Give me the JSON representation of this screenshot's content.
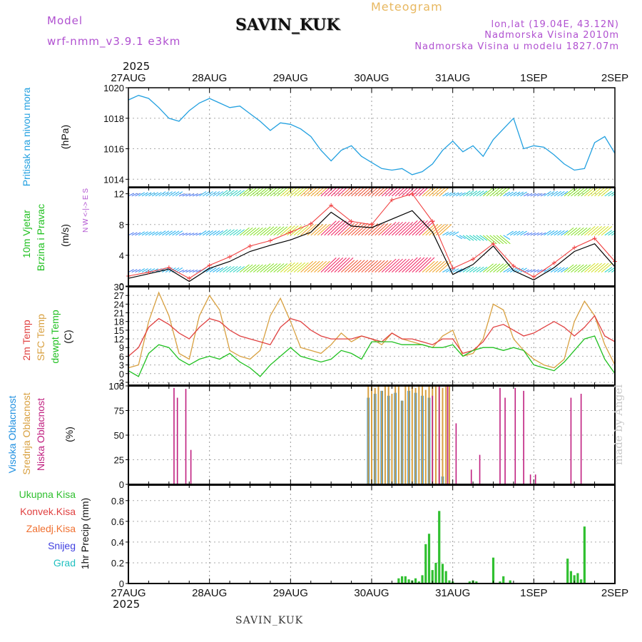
{
  "header": {
    "model_label": "Model",
    "model_name": "wrf-nmm_v3.9.1  e3km",
    "station": "SAVIN_KUK",
    "title": "Meteogram",
    "lonlat": "lon,lat (19.04E, 43.12N)",
    "altitude": "Nadmorska Visina 2010m",
    "model_altitude": "Nadmorska Visina u modelu 1827.07m",
    "year": "2025",
    "footer_station": "SAVIN_KUK",
    "credit": "made by Angel"
  },
  "time_axis": {
    "labels": [
      "27AUG",
      "28AUG",
      "29AUG",
      "30AUG",
      "31AUG",
      "1SEP",
      "2SEP"
    ],
    "range_hours": [
      0,
      144
    ]
  },
  "colors": {
    "pressure": "#22a0e0",
    "temp2m": "#e04040",
    "sfc_temp": "#d8a040",
    "dewpoint": "#20c020",
    "high_cloud": "#2090e0",
    "mid_cloud": "#d8a040",
    "low_cloud": "#c02080",
    "precip": "#30c030",
    "wind_speed": "#000000",
    "gust": "#f04040"
  },
  "chart_data": [
    {
      "type": "line",
      "name": "pressure",
      "ylabel_side": "Pritisak na nivou mora",
      "ylabel_unit": "(hPa)",
      "ylim": [
        1013.5,
        1020
      ],
      "yticks": [
        1014,
        1016,
        1018,
        1020
      ],
      "series": [
        {
          "name": "MSLP",
          "hours": [
            0,
            3,
            6,
            9,
            12,
            15,
            18,
            21,
            24,
            27,
            30,
            33,
            36,
            39,
            42,
            45,
            48,
            51,
            54,
            57,
            60,
            63,
            66,
            69,
            72,
            75,
            78,
            81,
            84,
            87,
            90,
            93,
            96,
            99,
            102,
            105,
            108,
            111,
            114,
            117,
            120,
            123,
            126,
            129,
            132,
            135,
            138,
            141,
            144
          ],
          "values": [
            1019.2,
            1019.5,
            1019.3,
            1018.7,
            1018.0,
            1017.8,
            1018.5,
            1019.0,
            1019.3,
            1019.0,
            1018.7,
            1018.8,
            1018.3,
            1017.8,
            1017.2,
            1017.7,
            1017.6,
            1017.3,
            1016.8,
            1015.9,
            1015.2,
            1015.9,
            1016.2,
            1015.5,
            1015.1,
            1014.7,
            1014.6,
            1014.7,
            1014.3,
            1014.5,
            1015.0,
            1015.9,
            1016.5,
            1015.8,
            1016.2,
            1015.5,
            1016.6,
            1017.3,
            1018.0,
            1016.0,
            1016.2,
            1016.1,
            1015.6,
            1015.0,
            1014.6,
            1014.7,
            1016.4,
            1016.8,
            1015.7
          ]
        }
      ]
    },
    {
      "type": "line",
      "name": "wind",
      "ylabel_side_1": "10m Vjetar",
      "ylabel_side_2": "Brzina i Pravac",
      "ylabel_unit": "(m/s)",
      "compass": "N  W <-|-> E  S",
      "ylim": [
        0,
        12.8
      ],
      "yticks": [
        0,
        4,
        8,
        12
      ],
      "series": [
        {
          "name": "wind speed",
          "hours": [
            0,
            6,
            12,
            18,
            24,
            30,
            36,
            42,
            48,
            54,
            60,
            66,
            72,
            78,
            84,
            90,
            96,
            102,
            108,
            114,
            120,
            126,
            132,
            138,
            144
          ],
          "values": [
            1.0,
            1.6,
            2.2,
            0.6,
            2.3,
            3.2,
            4.5,
            5.3,
            6.0,
            7.0,
            9.6,
            7.8,
            7.6,
            8.7,
            9.8,
            7.0,
            1.5,
            2.8,
            5.2,
            2.0,
            0.8,
            2.4,
            4.5,
            5.5,
            2.5
          ]
        },
        {
          "name": "wind gust",
          "hours": [
            0,
            6,
            12,
            18,
            24,
            30,
            36,
            42,
            48,
            54,
            60,
            66,
            72,
            78,
            84,
            90,
            96,
            102,
            108,
            114,
            120,
            126,
            132,
            138,
            144
          ],
          "values": [
            1.3,
            1.8,
            2.4,
            1.0,
            2.7,
            3.8,
            5.2,
            5.9,
            7.0,
            8.1,
            10.5,
            8.4,
            8.0,
            11.2,
            12.0,
            8.4,
            2.3,
            3.5,
            5.5,
            2.6,
            1.2,
            3.0,
            5.0,
            6.2,
            3.2
          ]
        }
      ]
    },
    {
      "type": "line",
      "name": "temperature",
      "ylabel_side_1": "2m Temp",
      "ylabel_side_2": "SFC Temp",
      "ylabel_side_3": "dewpt Temp",
      "ylabel_unit": "(C)",
      "ylim": [
        -4,
        30
      ],
      "yticks": [
        -3,
        0,
        3,
        6,
        9,
        12,
        15,
        18,
        21,
        24,
        27,
        30
      ],
      "series": [
        {
          "name": "2m Temp",
          "hours": [
            0,
            3,
            6,
            9,
            12,
            15,
            18,
            21,
            24,
            27,
            30,
            33,
            36,
            39,
            42,
            45,
            48,
            51,
            54,
            57,
            60,
            63,
            66,
            69,
            72,
            75,
            78,
            81,
            84,
            87,
            90,
            93,
            96,
            99,
            102,
            105,
            108,
            111,
            114,
            117,
            120,
            123,
            126,
            129,
            132,
            135,
            138,
            141,
            144
          ],
          "values": [
            6,
            9,
            16,
            19,
            17,
            14,
            12,
            16,
            19,
            18,
            15,
            13,
            12,
            11,
            10,
            16,
            19,
            18,
            15,
            13,
            12,
            12,
            12,
            13,
            12,
            11,
            14,
            12,
            12,
            11,
            10,
            12,
            12,
            7,
            8,
            11,
            16,
            17,
            15,
            13,
            14,
            16,
            18,
            16,
            13,
            16,
            20,
            13,
            11
          ]
        },
        {
          "name": "SFC Temp",
          "hours": [
            0,
            3,
            6,
            9,
            12,
            15,
            18,
            21,
            24,
            27,
            30,
            33,
            36,
            39,
            42,
            45,
            48,
            51,
            54,
            57,
            60,
            63,
            66,
            69,
            72,
            75,
            78,
            81,
            84,
            87,
            90,
            93,
            96,
            99,
            102,
            105,
            108,
            111,
            114,
            117,
            120,
            123,
            126,
            129,
            132,
            135,
            138,
            141,
            144
          ],
          "values": [
            2,
            3,
            18,
            28,
            20,
            7,
            5,
            20,
            27,
            22,
            8,
            6,
            5,
            8,
            20,
            26,
            18,
            9,
            8,
            7,
            10,
            14,
            11,
            13,
            12,
            10,
            14,
            12,
            11,
            10,
            9,
            13,
            15,
            6,
            7,
            12,
            24,
            22,
            12,
            8,
            5,
            3,
            2,
            5,
            18,
            25,
            20,
            10,
            3
          ]
        },
        {
          "name": "dewpt Temp",
          "hours": [
            0,
            3,
            6,
            9,
            12,
            15,
            18,
            21,
            24,
            27,
            30,
            33,
            36,
            39,
            42,
            45,
            48,
            51,
            54,
            57,
            60,
            63,
            66,
            69,
            72,
            75,
            78,
            81,
            84,
            87,
            90,
            93,
            96,
            99,
            102,
            105,
            108,
            111,
            114,
            117,
            120,
            123,
            126,
            129,
            132,
            135,
            138,
            141,
            144
          ],
          "values": [
            1,
            -1,
            7,
            10,
            9,
            5,
            3,
            5,
            6,
            5,
            7,
            4,
            2,
            -1,
            3,
            6,
            9,
            6,
            5,
            4,
            5,
            8,
            7,
            5,
            11,
            11,
            11,
            10,
            10,
            10,
            9,
            9,
            10,
            6,
            8,
            9,
            9,
            8,
            9,
            8,
            3,
            2,
            1,
            4,
            8,
            12,
            13,
            5,
            0
          ]
        }
      ]
    },
    {
      "type": "bar",
      "name": "cloud",
      "ylabel_side_1": "Visoka Oblacnost",
      "ylabel_side_2": "Srednja Oblacnost",
      "ylabel_side_3": "Niska Oblacnost",
      "ylabel_unit": "(%)",
      "ylim": [
        0,
        100
      ],
      "yticks": [
        0,
        25,
        50,
        75,
        100
      ],
      "series": [
        {
          "name": "Niska",
          "hours": [
            13.5,
            14.5,
            17.0,
            18.5,
            90.0,
            92.0,
            94.5,
            97.0,
            101.5,
            104.0,
            110.0,
            111.5,
            114.5,
            117.0,
            119.0,
            120.5,
            131.0,
            134.0
          ],
          "values": [
            98,
            88,
            97,
            35,
            90,
            100,
            100,
            62,
            15,
            30,
            98,
            88,
            98,
            95,
            10,
            10,
            88,
            92
          ]
        },
        {
          "name": "Srednja",
          "hours": [
            71,
            72,
            73,
            74,
            75,
            76,
            77,
            78,
            79,
            80,
            81,
            82,
            83,
            84,
            85,
            86,
            87,
            88,
            89,
            90,
            91,
            92,
            93,
            94,
            95
          ],
          "values": [
            100,
            100,
            98,
            100,
            95,
            100,
            100,
            92,
            100,
            100,
            85,
            100,
            100,
            100,
            98,
            100,
            100,
            96,
            100,
            100,
            100,
            100,
            98,
            100,
            100
          ]
        },
        {
          "name": "Visoka",
          "hours": [
            71,
            73,
            75,
            77,
            79,
            81,
            83,
            85,
            87,
            89,
            93
          ],
          "values": [
            88,
            92,
            95,
            90,
            93,
            85,
            95,
            93,
            90,
            88,
            8
          ]
        }
      ]
    },
    {
      "type": "bar",
      "name": "precipitation",
      "legend": [
        "Ukupna Kisa",
        "Konvek.Kisa",
        "Zaledj.Kisa",
        "Snijeg",
        "Grad"
      ],
      "legend_colors": [
        "#30c030",
        "#e04040",
        "#f07030",
        "#4040e0",
        "#20c0c0"
      ],
      "ylabel_unit": "1hr Precip (mm)",
      "ylim": [
        0,
        0.95
      ],
      "yticks": [
        0,
        0.2,
        0.4,
        0.6,
        0.8
      ],
      "series": [
        {
          "name": "Ukupna Kisa",
          "hours": [
            80,
            81,
            82,
            83,
            84,
            85,
            86,
            87,
            88,
            89,
            90,
            91,
            92,
            93,
            94,
            95,
            96,
            101,
            102,
            103,
            108,
            110,
            111,
            113,
            130,
            131,
            132,
            133,
            134,
            135
          ],
          "values": [
            0.05,
            0.07,
            0.07,
            0.04,
            0.03,
            0.05,
            0.02,
            0.08,
            0.38,
            0.48,
            0.13,
            0.2,
            0.7,
            0.19,
            0.12,
            0.03,
            0.02,
            0.02,
            0.03,
            0.02,
            0.25,
            0.02,
            0.07,
            0.03,
            0.24,
            0.12,
            0.08,
            0.1,
            0.04,
            0.55
          ]
        }
      ]
    }
  ]
}
